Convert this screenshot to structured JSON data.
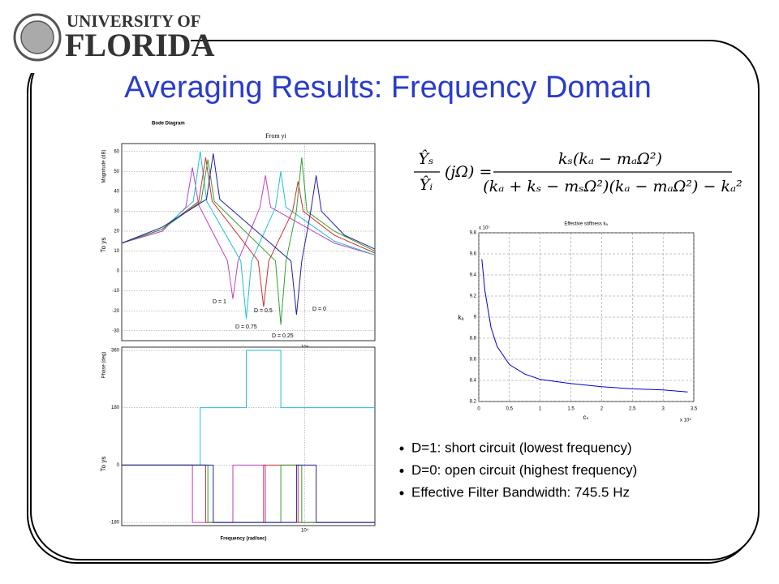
{
  "header": {
    "line1": "UNIVERSITY OF",
    "line2": "FLORIDA"
  },
  "title": "Averaging Results:  Frequency Domain",
  "bode_magnitude": {
    "type": "line",
    "title": "Bode Diagram",
    "subtitle": "From yi",
    "ylabel": "Magnitude (dB)",
    "row_label": "To ys",
    "xscale": "log",
    "xlim": [
      2500,
      17000
    ],
    "ylim": [
      -35,
      64
    ],
    "yticks": [
      -30,
      -20,
      -10,
      0,
      10,
      20,
      30,
      40,
      50,
      60
    ],
    "xticks": [
      {
        "value": 10000,
        "label": "10⁴"
      }
    ],
    "grid": true,
    "series": [
      {
        "name": "D = 1",
        "color": "#c040c0",
        "x": [
          2500,
          3400,
          4060,
          4270,
          4480,
          5570,
          5800,
          6030,
          7120,
          7420,
          7720,
          12500,
          17000
        ],
        "values": [
          14,
          20,
          32,
          52,
          33,
          5,
          -14,
          5,
          32,
          48,
          32,
          14,
          8
        ]
      },
      {
        "name": "D = 0.75",
        "color": "#20c0d0",
        "x": [
          2500,
          3400,
          4300,
          4530,
          4760,
          6160,
          6420,
          6680,
          8010,
          8340,
          8670,
          12500,
          17000
        ],
        "values": [
          14,
          21,
          35,
          60,
          35,
          5,
          -24,
          5,
          32,
          50,
          32,
          15,
          8
        ]
      },
      {
        "name": "D = 0.5",
        "color": "#d03030",
        "x": [
          2500,
          3400,
          4480,
          4720,
          4960,
          7030,
          7320,
          7610,
          9120,
          9500,
          9880,
          12500,
          17000
        ],
        "values": [
          14,
          21,
          35,
          57,
          35,
          5,
          -18,
          5,
          30,
          45,
          30,
          18,
          9
        ]
      },
      {
        "name": "D = 0.25",
        "color": "#30a030",
        "x": [
          2500,
          3400,
          4560,
          4800,
          5040,
          8010,
          8340,
          8670,
          9380,
          9770,
          10160,
          12500,
          17000
        ],
        "values": [
          14,
          21,
          35,
          56,
          35,
          5,
          -27,
          5,
          30,
          57,
          30,
          20,
          10
        ]
      },
      {
        "name": "D = 0",
        "color": "#2020a0",
        "x": [
          2500,
          3400,
          4750,
          5000,
          5250,
          9010,
          9390,
          9770,
          10460,
          10900,
          11340,
          13500,
          17000
        ],
        "values": [
          14,
          22,
          36,
          59,
          36,
          5,
          -22,
          5,
          30,
          48,
          30,
          18,
          11
        ]
      }
    ]
  },
  "bode_phase": {
    "type": "step",
    "ylabel": "Phase (deg)",
    "row_label": "To ys",
    "xlabel": "Frequency (rad/sec)",
    "xscale": "log",
    "xlim": [
      2500,
      17000
    ],
    "ylim": [
      -190,
      370
    ],
    "yticks": [
      -180,
      0,
      180,
      360
    ],
    "xticks": [
      {
        "value": 10000,
        "label": "10⁴"
      }
    ],
    "grid": true,
    "series": [
      {
        "color": "#c040c0",
        "x": [
          2500,
          4270,
          5800,
          7420
        ],
        "values": [
          0,
          -180,
          0,
          -180
        ]
      },
      {
        "color": "#20c0d0",
        "x": [
          2500,
          4530,
          6420,
          8340
        ],
        "values": [
          0,
          180,
          360,
          180
        ]
      },
      {
        "color": "#d03030",
        "x": [
          2500,
          4720,
          7320,
          9500
        ],
        "values": [
          0,
          -180,
          0,
          -180
        ]
      },
      {
        "color": "#30a030",
        "x": [
          2500,
          4800,
          8340,
          9770
        ],
        "values": [
          0,
          -180,
          0,
          -180
        ]
      },
      {
        "color": "#2020a0",
        "x": [
          2500,
          5000,
          9390,
          10900
        ],
        "values": [
          0,
          -180,
          0,
          -180
        ]
      }
    ]
  },
  "formula": {
    "lhs_top": "Ŷₛ",
    "lhs_bottom": "Ŷᵢ",
    "lhs_arg": "(jΩ) =",
    "numerator": "kₛ(kₐ − mₐΩ²)",
    "denominator": "(kₐ + kₛ − mₛΩ²)(kₐ − mₐΩ²) − kₐ²"
  },
  "stiffness": {
    "type": "line",
    "title": "Effective stiffness kₐ",
    "xlabel": "cₛ",
    "ylabel": "kₐ",
    "y_multiplier": "x 10⁷",
    "x_multiplier": "x 10⁵",
    "xlim": [
      0,
      3.5
    ],
    "ylim": [
      8.2,
      9.8
    ],
    "xticks": [
      0,
      0.5,
      1,
      1.5,
      2,
      2.5,
      3,
      3.5
    ],
    "yticks": [
      8.2,
      8.4,
      8.6,
      8.8,
      9,
      9.2,
      9.4,
      9.6,
      9.8
    ],
    "grid": true,
    "color": "#0000cc",
    "x": [
      0.05,
      0.1,
      0.2,
      0.3,
      0.5,
      0.75,
      1,
      1.5,
      2,
      2.5,
      3,
      3.4
    ],
    "values": [
      9.55,
      9.25,
      8.9,
      8.72,
      8.55,
      8.46,
      8.41,
      8.37,
      8.34,
      8.32,
      8.31,
      8.29
    ]
  },
  "bullets": [
    "D=1:  short circuit (lowest frequency)",
    "D=0:  open circuit (highest frequency)",
    "Effective Filter Bandwidth:  745.5 Hz"
  ]
}
